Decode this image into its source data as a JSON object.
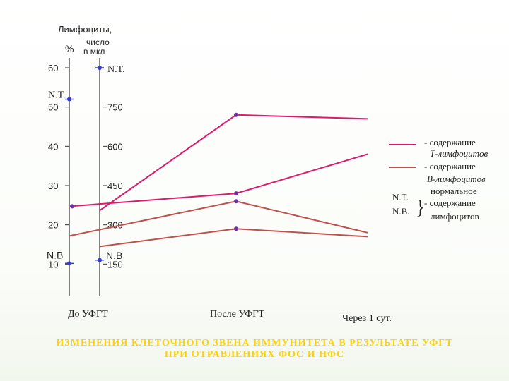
{
  "chart_data": {
    "type": "line",
    "left_axis": {
      "header": "%",
      "ticks": [
        {
          "value": 60,
          "label": "60"
        },
        {
          "value": 50,
          "label": "50"
        },
        {
          "value": 40,
          "label": "40"
        },
        {
          "value": 30,
          "label": "30"
        },
        {
          "value": 20,
          "label": "20"
        },
        {
          "value": 10,
          "label": "10"
        }
      ],
      "range": [
        0,
        60
      ],
      "markers": [
        {
          "label": "N.T.",
          "value": 52
        },
        {
          "label": "N.B",
          "value": 10
        }
      ]
    },
    "right_axis": {
      "header_line1": "число",
      "header_line2": "в мкл",
      "ticks": [
        {
          "value": 750,
          "label": "750"
        },
        {
          "value": 600,
          "label": "600"
        },
        {
          "value": 450,
          "label": "450"
        },
        {
          "value": 300,
          "label": "300"
        },
        {
          "value": 150,
          "label": "150"
        }
      ],
      "range": [
        0,
        900
      ],
      "markers": [
        {
          "label": "N.T.",
          "value": 900
        },
        {
          "label": "N.B",
          "value": 165
        }
      ]
    },
    "common_header": "Лимфоциты,",
    "categories": [
      "До УФГТ",
      "После УФГТ",
      "Через 1 сут."
    ],
    "series": [
      {
        "type": "t",
        "unit": "percent",
        "x": [
          0,
          1,
          2
        ],
        "values": [
          25,
          28,
          38
        ],
        "color": "#e0186a"
      },
      {
        "type": "t",
        "unit": "count",
        "x": [
          0,
          1,
          2
        ],
        "values": [
          315,
          720,
          705
        ],
        "color": "#e0186a"
      },
      {
        "type": "b",
        "unit": "percent",
        "x": [
          0,
          1,
          2
        ],
        "values": [
          18,
          26,
          18
        ],
        "color": "#c0504d"
      },
      {
        "type": "b",
        "unit": "count",
        "x": [
          0,
          1,
          2
        ],
        "values": [
          210,
          285,
          255
        ],
        "color": "#c0504d"
      }
    ],
    "legend": {
      "placement": "right",
      "t_line1": "- содержание",
      "t_line2": "Т-лимфоцитов",
      "b_line1": "- содержание",
      "b_line2": "В-лимфоцитов",
      "norm_label1": "N.T.",
      "norm_label2": "N.B.",
      "norm_line1": "нормальное",
      "norm_line2": "- содержание",
      "norm_line3": "лимфоцитов"
    }
  },
  "caption": {
    "line1": "ИЗМЕНЕНИЯ КЛЕТОЧНОГО ЗВЕНА ИММУНИТЕТА В РЕЗУЛЬТАТЕ УФГТ",
    "line2": "ПРИ ОТРАВЛЕНИЯХ ФОС И НФС"
  }
}
